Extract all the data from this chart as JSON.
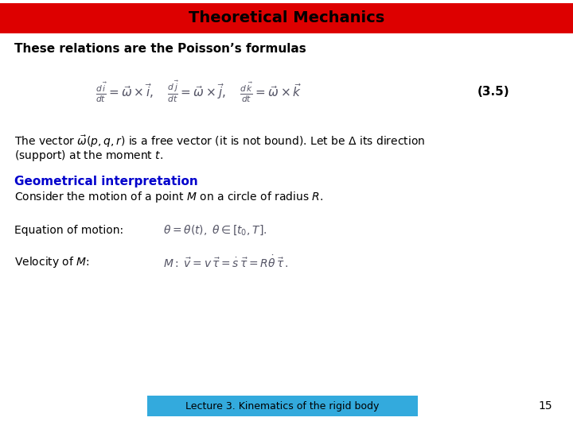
{
  "title": "Theoretical Mechanics",
  "title_bg_color": "#DD0000",
  "title_text_color": "#000000",
  "slide_bg_color": "#FFFFFF",
  "footer_text": "Lecture 3. Kinematics of the rigid body",
  "footer_bg_color": "#33AADD",
  "footer_text_color": "#000000",
  "page_number": "15",
  "line1_text": "These relations are the Poisson’s formulas",
  "eq_label": "(3.5)",
  "geo_interp_label": "Geometrical interpretation",
  "geo_interp_color": "#0000CC",
  "title_fontsize": 14,
  "body_fontsize": 11,
  "small_fontsize": 10,
  "math_color": "#555566",
  "text_color": "#000000"
}
